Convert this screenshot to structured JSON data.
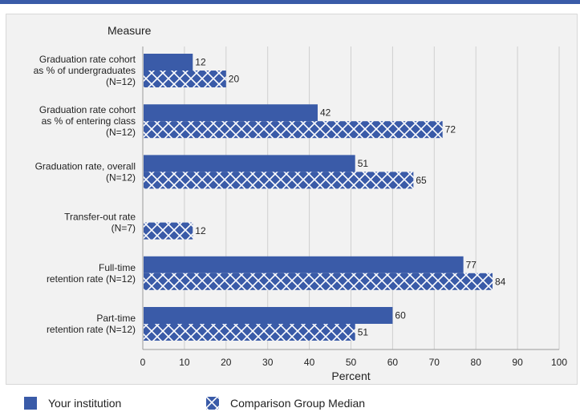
{
  "chart_data": {
    "type": "bar",
    "orientation": "horizontal",
    "category_header": "Measure",
    "categories": [
      [
        "Graduation rate cohort",
        "as % of undergraduates",
        "(N=12)"
      ],
      [
        "Graduation rate cohort",
        "as % of entering class",
        "(N=12)"
      ],
      [
        "Graduation rate, overall",
        "(N=12)"
      ],
      [
        "Transfer-out rate",
        "(N=7)"
      ],
      [
        "Full-time",
        "retention rate (N=12)"
      ],
      [
        "Part-time",
        "retention rate (N=12)"
      ]
    ],
    "series": [
      {
        "name": "Your institution",
        "values": [
          12,
          42,
          51,
          null,
          77,
          60
        ],
        "color": "#3a5ba8",
        "pattern": "solid"
      },
      {
        "name": "Comparison Group Median",
        "values": [
          20,
          72,
          65,
          12,
          84,
          51
        ],
        "color": "#3a5ba8",
        "pattern": "crosshatch"
      }
    ],
    "xlabel": "Percent",
    "xlim": [
      0,
      100
    ],
    "xticks": [
      0,
      10,
      20,
      30,
      40,
      50,
      60,
      70,
      80,
      90,
      100
    ],
    "grid": true,
    "legend_position": "bottom"
  }
}
